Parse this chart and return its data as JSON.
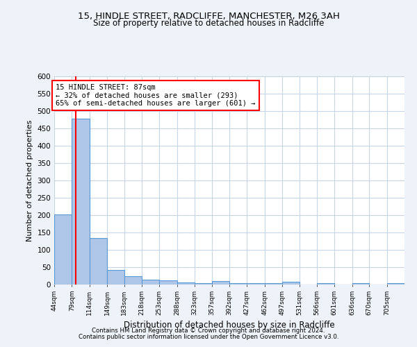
{
  "title_line1": "15, HINDLE STREET, RADCLIFFE, MANCHESTER, M26 3AH",
  "title_line2": "Size of property relative to detached houses in Radcliffe",
  "xlabel": "Distribution of detached houses by size in Radcliffe",
  "ylabel": "Number of detached properties",
  "footnote1": "Contains HM Land Registry data © Crown copyright and database right 2024.",
  "footnote2": "Contains public sector information licensed under the Open Government Licence v3.0.",
  "bar_edges": [
    44,
    79,
    114,
    149,
    183,
    218,
    253,
    288,
    323,
    357,
    392,
    427,
    462,
    497,
    531,
    566,
    601,
    636,
    670,
    705,
    740
  ],
  "bar_heights": [
    203,
    478,
    135,
    43,
    25,
    15,
    12,
    6,
    5,
    10,
    5,
    5,
    5,
    8,
    0,
    5,
    0,
    5,
    0,
    5
  ],
  "bar_color": "#aec6e8",
  "bar_edge_color": "#5b9bd5",
  "property_size": 87,
  "annotation_line1": "15 HINDLE STREET: 87sqm",
  "annotation_line2": "← 32% of detached houses are smaller (293)",
  "annotation_line3": "65% of semi-detached houses are larger (601) →",
  "annotation_box_color": "white",
  "annotation_box_edge_color": "red",
  "vline_color": "red",
  "bg_color": "#eef2f9",
  "plot_bg_color": "white",
  "grid_color": "#c8d4e8",
  "ylim": [
    0,
    600
  ],
  "yticks": [
    0,
    50,
    100,
    150,
    200,
    250,
    300,
    350,
    400,
    450,
    500,
    550,
    600
  ]
}
